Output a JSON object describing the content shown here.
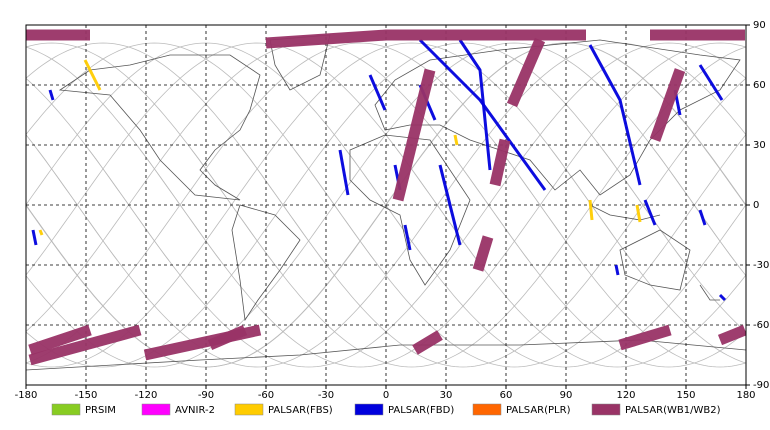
{
  "chart_data": {
    "type": "map",
    "xlim": [
      -180,
      180
    ],
    "ylim": [
      -90,
      90
    ],
    "xticks": [
      -180,
      -150,
      -120,
      -90,
      -60,
      -30,
      0,
      30,
      60,
      90,
      120,
      150,
      180
    ],
    "yticks": [
      -90,
      -60,
      -30,
      0,
      30,
      60,
      90
    ],
    "grid": true,
    "series": [
      {
        "name": "PRSIM",
        "color": "#88cc22",
        "segments": []
      },
      {
        "name": "AVNIR-2",
        "color": "#ff00ff",
        "segments": []
      },
      {
        "name": "PALSAR(FBS)",
        "color": "#ffcc00",
        "segments": [
          {
            "x": [
              -150.5,
              -143
            ],
            "values": [
              72.5,
              57.5
            ]
          },
          {
            "x": [
              102,
              103
            ],
            "values": [
              2.5,
              -7.5
            ]
          },
          {
            "x": [
              125.5,
              127
            ],
            "values": [
              0,
              -8.5
            ]
          },
          {
            "x": [
              34.5,
              35.5
            ],
            "values": [
              35,
              30
            ]
          },
          {
            "x": [
              -173,
              -172
            ],
            "values": [
              -12.5,
              -15
            ]
          }
        ]
      },
      {
        "name": "PALSAR(FBD)",
        "color": "#0000dd",
        "segments": [
          {
            "x": [
              17,
              47,
              79.5
            ],
            "values": [
              82.5,
              52.5,
              7.5
            ]
          },
          {
            "x": [
              37,
              47,
              52
            ],
            "values": [
              82.5,
              67.5,
              17.5
            ]
          },
          {
            "x": [
              102,
              117,
              127
            ],
            "values": [
              80,
              52.5,
              10
            ]
          },
          {
            "x": [
              157,
              168
            ],
            "values": [
              70,
              52.5
            ]
          },
          {
            "x": [
              -8,
              -0.5
            ],
            "values": [
              65,
              47.5
            ]
          },
          {
            "x": [
              -23,
              -19
            ],
            "values": [
              27.5,
              5
            ]
          },
          {
            "x": [
              4.5,
              7
            ],
            "values": [
              20,
              7.5
            ]
          },
          {
            "x": [
              27,
              37
            ],
            "values": [
              20,
              -20
            ]
          },
          {
            "x": [
              9.5,
              12
            ],
            "values": [
              -10,
              -22.5
            ]
          },
          {
            "x": [
              17,
              24.5
            ],
            "values": [
              60,
              42.5
            ]
          },
          {
            "x": [
              129.5,
              134.5
            ],
            "values": [
              2.5,
              -10
            ]
          },
          {
            "x": [
              144.5,
              147
            ],
            "values": [
              57.5,
              45
            ]
          },
          {
            "x": [
              -168,
              -166.5
            ],
            "values": [
              57.5,
              52.5
            ]
          },
          {
            "x": [
              -176.5,
              -175
            ],
            "values": [
              -12.5,
              -20
            ]
          },
          {
            "x": [
              167,
              169.5
            ],
            "values": [
              -45,
              -47.5
            ]
          },
          {
            "x": [
              115,
              116
            ],
            "values": [
              -30,
              -35
            ]
          },
          {
            "x": [
              157,
              159.5
            ],
            "values": [
              -2.5,
              -10
            ]
          }
        ]
      },
      {
        "name": "PALSAR(PLR)",
        "color": "#ff6600",
        "segments": []
      },
      {
        "name": "PALSAR(WB1/WB2)",
        "color": "#993366",
        "segments": [
          {
            "x": [
              -60,
              0,
              100
            ],
            "values": [
              81,
              85,
              85
            ]
          },
          {
            "x": [
              22,
              6
            ],
            "values": [
              67.5,
              2.5
            ]
          },
          {
            "x": [
              77,
              63
            ],
            "values": [
              82.5,
              50
            ]
          },
          {
            "x": [
              59.5,
              54.5
            ],
            "values": [
              32.5,
              10
            ]
          },
          {
            "x": [
              51,
              46
            ],
            "values": [
              -16,
              -32.5
            ]
          },
          {
            "x": [
              147,
              134.5
            ],
            "values": [
              67.5,
              32.5
            ]
          },
          {
            "x": [
              -178,
              -123
            ],
            "values": [
              -77.5,
              -62.5
            ]
          },
          {
            "x": [
              -120.5,
              -63
            ],
            "values": [
              -75,
              -62.5
            ]
          },
          {
            "x": [
              -88,
              -70.5
            ],
            "values": [
              -70,
              -62.5
            ]
          },
          {
            "x": [
              14.5,
              27
            ],
            "values": [
              -72.5,
              -65
            ]
          },
          {
            "x": [
              117,
              142
            ],
            "values": [
              -70,
              -62.5
            ]
          },
          {
            "x": [
              167,
              179.5
            ],
            "values": [
              -67.5,
              -62.5
            ]
          },
          {
            "x": [
              -178,
              -148
            ],
            "values": [
              -72.5,
              -62.5
            ]
          },
          {
            "x": [
              132,
              179.5
            ],
            "values": [
              85,
              85
            ]
          },
          {
            "x": [
              -180,
              -148
            ],
            "values": [
              85,
              85
            ]
          }
        ]
      }
    ]
  }
}
